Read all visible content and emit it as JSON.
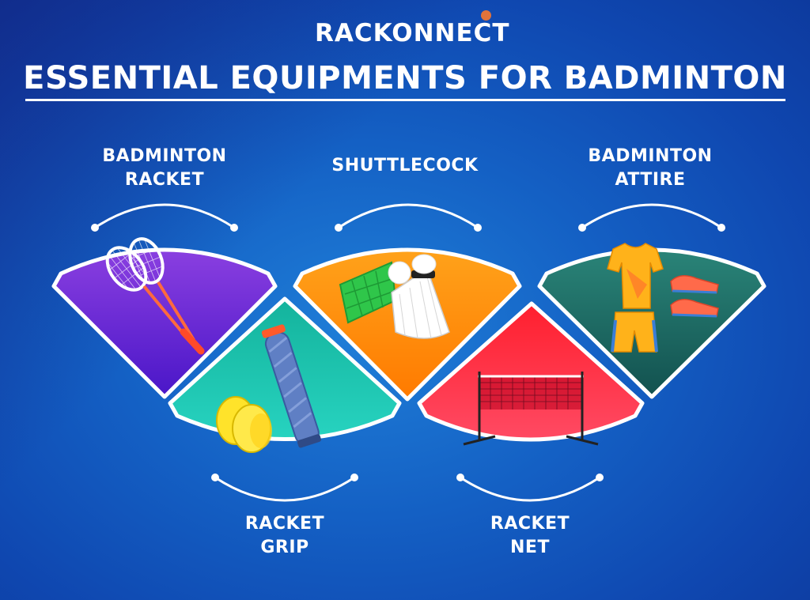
{
  "brand": {
    "name": "RACKONNECT"
  },
  "title": "ESSENTIAL EQUIPMENTS FOR BADMINTON",
  "items": [
    {
      "line1": "BADMINTON",
      "line2": "RACKET",
      "color": "#7a33d6",
      "icon": "racket-icon"
    },
    {
      "line1": "SHUTTLECOCK",
      "line2": "",
      "color": "#ff9f14",
      "icon": "shuttlecock-icon"
    },
    {
      "line1": "BADMINTON",
      "line2": "ATTIRE",
      "color": "#1f6e68",
      "icon": "attire-icon"
    },
    {
      "line1": "RACKET",
      "line2": "GRIP",
      "color": "#1fc9b3",
      "icon": "grip-icon"
    },
    {
      "line1": "RACKET",
      "line2": "NET",
      "color": "#ff3249",
      "icon": "net-icon"
    }
  ],
  "colors": {
    "accent_dot": "#e2733a",
    "background": "#1460c4"
  }
}
